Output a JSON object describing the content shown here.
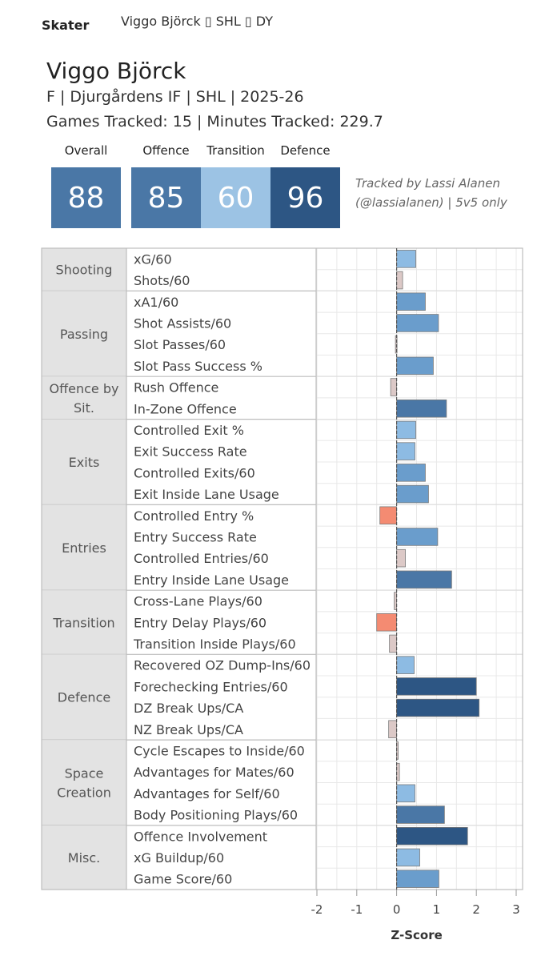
{
  "header": {
    "tab_label": "Skater",
    "breadcrumb": "Viggo Björck ▯ SHL ▯ DY"
  },
  "player": {
    "name": "Viggo Björck",
    "info_line": "F | Djurgårdens IF | SHL | 2025-26",
    "tracked_line": "Games Tracked: 15 | Minutes Tracked: 229.7"
  },
  "ratings": {
    "overall": {
      "label": "Overall",
      "value": "88",
      "color": "#4a77a6"
    },
    "offence": {
      "label": "Offence",
      "value": "85",
      "color": "#4a77a6"
    },
    "transition": {
      "label": "Transition",
      "value": "60",
      "color": "#9cc3e4"
    },
    "defence": {
      "label": "Defence",
      "value": "96",
      "color": "#2d5684"
    }
  },
  "note": {
    "line1": "Tracked by Lassi Alanen",
    "line2": "(@lassialanen) | 5v5 only"
  },
  "chart_data": {
    "type": "bar",
    "orientation": "horizontal",
    "xlabel": "Z-Score",
    "xlim": [
      -2,
      3
    ],
    "xticks": [
      -2,
      -1,
      0,
      1,
      2,
      3
    ],
    "grid": true,
    "groups": [
      {
        "name": "Shooting",
        "label_lines": [
          "Shooting"
        ],
        "metrics": [
          {
            "label": "xG/60",
            "value": 0.48
          },
          {
            "label": "Shots/60",
            "value": 0.15
          }
        ]
      },
      {
        "name": "Passing",
        "label_lines": [
          "Passing"
        ],
        "metrics": [
          {
            "label": "xA1/60",
            "value": 0.72
          },
          {
            "label": "Shot Assists/60",
            "value": 1.05
          },
          {
            "label": "Slot Passes/60",
            "value": -0.03
          },
          {
            "label": "Slot Pass Success %",
            "value": 0.92
          }
        ]
      },
      {
        "name": "Offence by Sit.",
        "label_lines": [
          "Offence by",
          "Sit."
        ],
        "metrics": [
          {
            "label": "Rush Offence",
            "value": -0.15
          },
          {
            "label": "In-Zone Offence",
            "value": 1.25
          }
        ]
      },
      {
        "name": "Exits",
        "label_lines": [
          "Exits"
        ],
        "metrics": [
          {
            "label": "Controlled Exit %",
            "value": 0.48
          },
          {
            "label": "Exit Success Rate",
            "value": 0.46
          },
          {
            "label": "Controlled Exits/60",
            "value": 0.72
          },
          {
            "label": "Exit Inside Lane Usage",
            "value": 0.8
          }
        ]
      },
      {
        "name": "Entries",
        "label_lines": [
          "Entries"
        ],
        "metrics": [
          {
            "label": "Controlled Entry %",
            "value": -0.42
          },
          {
            "label": "Entry Success Rate",
            "value": 1.03
          },
          {
            "label": "Controlled Entries/60",
            "value": 0.22
          },
          {
            "label": "Entry Inside Lane Usage",
            "value": 1.38
          }
        ]
      },
      {
        "name": "Transition",
        "label_lines": [
          "Transition"
        ],
        "metrics": [
          {
            "label": "Cross-Lane Plays/60",
            "value": -0.06
          },
          {
            "label": "Entry Delay Plays/60",
            "value": -0.5
          },
          {
            "label": "Transition Inside Plays/60",
            "value": -0.18
          }
        ]
      },
      {
        "name": "Defence",
        "label_lines": [
          "Defence"
        ],
        "metrics": [
          {
            "label": "Recovered OZ Dump-Ins/60",
            "value": 0.44
          },
          {
            "label": "Forechecking Entries/60",
            "value": 2.0
          },
          {
            "label": "DZ Break Ups/CA",
            "value": 2.07
          },
          {
            "label": "NZ Break Ups/CA",
            "value": -0.2
          }
        ]
      },
      {
        "name": "Space Creation",
        "label_lines": [
          "Space",
          "Creation"
        ],
        "metrics": [
          {
            "label": "Cycle Escapes to Inside/60",
            "value": 0.0
          },
          {
            "label": "Advantages for Mates/60",
            "value": 0.07
          },
          {
            "label": "Advantages for Self/60",
            "value": 0.46
          },
          {
            "label": "Body Positioning Plays/60",
            "value": 1.2
          }
        ]
      },
      {
        "name": "Misc.",
        "label_lines": [
          "Misc."
        ],
        "metrics": [
          {
            "label": "Offence Involvement",
            "value": 1.78
          },
          {
            "label": "xG Buildup/60",
            "value": 0.58
          },
          {
            "label": "Game Score/60",
            "value": 1.06
          }
        ]
      }
    ],
    "colors": {
      "negative": "#f48b72",
      "near_zero": "#dcc9c7",
      "low": "#8dbbe3",
      "mid": "#6a9dcc",
      "high": "#4a77a6",
      "top": "#2d5684",
      "group_bg": "#e3e3e3",
      "border": "#bdbdbd",
      "grid": "#e8e8e8",
      "zero_line": "#555555"
    }
  }
}
